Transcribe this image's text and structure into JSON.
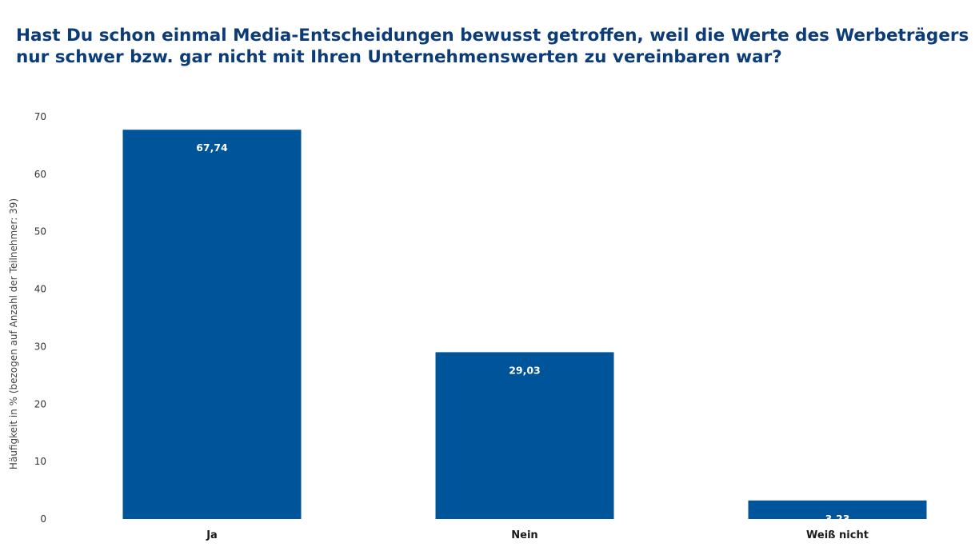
{
  "chart_data": {
    "type": "bar",
    "title": "Hast Du schon einmal Media-Entscheidungen bewusst getroffen, weil die Werte des Werbeträgers nur schwer bzw. gar nicht mit Ihren Unternehmenswerten zu vereinbaren war?",
    "xlabel": "",
    "ylabel": "Häufigkeit in % (bezogen auf Anzahl der Teilnehmer: 39)",
    "categories": [
      "Ja",
      "Nein",
      "Weiß nicht"
    ],
    "values": [
      67.74,
      29.03,
      3.23
    ],
    "value_labels": [
      "67,74",
      "29,03",
      "3,23"
    ],
    "ylim": [
      0,
      70
    ],
    "yticks": [
      0,
      10,
      20,
      30,
      40,
      50,
      60,
      70
    ],
    "grid": false,
    "legend": "none",
    "bar_color": "#005499"
  }
}
